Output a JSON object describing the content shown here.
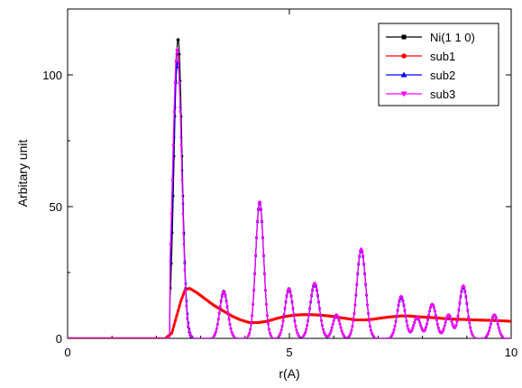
{
  "chart_data": {
    "type": "line",
    "title": "",
    "xlabel": "r(A)",
    "ylabel": "Arbitary unit",
    "xlim": [
      0,
      10
    ],
    "ylim": [
      0,
      125
    ],
    "xticks": [
      0,
      5,
      10
    ],
    "yticks": [
      0,
      50,
      100
    ],
    "grid": false,
    "legend_position": "top-right",
    "series": [
      {
        "name": "Ni(1 1 0)",
        "color": "#000000",
        "marker": "square",
        "kind": "peaks",
        "onset": 2.3,
        "peaks": [
          {
            "x": 2.49,
            "y": 114,
            "w": 0.09
          },
          {
            "x": 3.52,
            "y": 18,
            "w": 0.09
          },
          {
            "x": 4.33,
            "y": 52,
            "w": 0.09
          },
          {
            "x": 4.99,
            "y": 19,
            "w": 0.09
          },
          {
            "x": 5.57,
            "y": 21,
            "w": 0.1
          },
          {
            "x": 6.06,
            "y": 9,
            "w": 0.08
          },
          {
            "x": 6.62,
            "y": 34,
            "w": 0.1
          },
          {
            "x": 7.52,
            "y": 16,
            "w": 0.09
          },
          {
            "x": 7.88,
            "y": 8,
            "w": 0.08
          },
          {
            "x": 8.22,
            "y": 13,
            "w": 0.09
          },
          {
            "x": 8.59,
            "y": 9,
            "w": 0.08
          },
          {
            "x": 8.92,
            "y": 20,
            "w": 0.09
          },
          {
            "x": 9.62,
            "y": 9,
            "w": 0.08
          }
        ]
      },
      {
        "name": "sub1",
        "color": "#ff0000",
        "marker": "circle",
        "kind": "curve",
        "points": [
          [
            0.0,
            0
          ],
          [
            2.2,
            0
          ],
          [
            2.35,
            2
          ],
          [
            2.45,
            8
          ],
          [
            2.55,
            14
          ],
          [
            2.65,
            18.5
          ],
          [
            2.75,
            19
          ],
          [
            2.9,
            17.5
          ],
          [
            3.1,
            15
          ],
          [
            3.3,
            12.5
          ],
          [
            3.5,
            10.5
          ],
          [
            3.7,
            8.5
          ],
          [
            3.9,
            7
          ],
          [
            4.1,
            6
          ],
          [
            4.3,
            6
          ],
          [
            4.5,
            6.5
          ],
          [
            4.7,
            7.5
          ],
          [
            4.9,
            8.3
          ],
          [
            5.1,
            8.8
          ],
          [
            5.3,
            9
          ],
          [
            5.5,
            9
          ],
          [
            5.7,
            8.8
          ],
          [
            5.9,
            8.5
          ],
          [
            6.1,
            8
          ],
          [
            6.3,
            7.5
          ],
          [
            6.5,
            7
          ],
          [
            6.7,
            7
          ],
          [
            6.9,
            7.3
          ],
          [
            7.1,
            7.8
          ],
          [
            7.3,
            8.2
          ],
          [
            7.5,
            8.5
          ],
          [
            7.7,
            8.5
          ],
          [
            7.9,
            8.2
          ],
          [
            8.1,
            8
          ],
          [
            8.3,
            7.8
          ],
          [
            8.5,
            7.5
          ],
          [
            8.7,
            7.3
          ],
          [
            8.9,
            7.2
          ],
          [
            9.2,
            7
          ],
          [
            9.6,
            6.8
          ],
          [
            10.0,
            6.5
          ]
        ]
      },
      {
        "name": "sub2",
        "color": "#0000ff",
        "marker": "triangle",
        "kind": "peaks",
        "onset": 2.3,
        "peaks": [
          {
            "x": 2.48,
            "y": 105,
            "w": 0.1
          },
          {
            "x": 3.52,
            "y": 17.5,
            "w": 0.09
          },
          {
            "x": 4.33,
            "y": 51.5,
            "w": 0.09
          },
          {
            "x": 4.99,
            "y": 18.5,
            "w": 0.09
          },
          {
            "x": 5.57,
            "y": 20.5,
            "w": 0.1
          },
          {
            "x": 6.06,
            "y": 8.8,
            "w": 0.08
          },
          {
            "x": 6.62,
            "y": 33.5,
            "w": 0.1
          },
          {
            "x": 7.52,
            "y": 15.5,
            "w": 0.09
          },
          {
            "x": 7.88,
            "y": 7.8,
            "w": 0.08
          },
          {
            "x": 8.22,
            "y": 12.8,
            "w": 0.09
          },
          {
            "x": 8.59,
            "y": 8.8,
            "w": 0.08
          },
          {
            "x": 8.92,
            "y": 19.5,
            "w": 0.09
          },
          {
            "x": 9.62,
            "y": 8.8,
            "w": 0.08
          }
        ]
      },
      {
        "name": "sub3",
        "color": "#ff00ff",
        "marker": "triangle-down",
        "kind": "peaks",
        "onset": 2.3,
        "peaks": [
          {
            "x": 2.47,
            "y": 110,
            "w": 0.1
          },
          {
            "x": 3.52,
            "y": 17.8,
            "w": 0.09
          },
          {
            "x": 4.33,
            "y": 52,
            "w": 0.09
          },
          {
            "x": 4.99,
            "y": 18.8,
            "w": 0.09
          },
          {
            "x": 5.57,
            "y": 21,
            "w": 0.1
          },
          {
            "x": 6.06,
            "y": 9,
            "w": 0.08
          },
          {
            "x": 6.62,
            "y": 34,
            "w": 0.1
          },
          {
            "x": 7.52,
            "y": 16,
            "w": 0.09
          },
          {
            "x": 7.88,
            "y": 8,
            "w": 0.08
          },
          {
            "x": 8.22,
            "y": 13,
            "w": 0.09
          },
          {
            "x": 8.59,
            "y": 9,
            "w": 0.08
          },
          {
            "x": 8.92,
            "y": 20,
            "w": 0.09
          },
          {
            "x": 9.62,
            "y": 9,
            "w": 0.08
          }
        ]
      }
    ]
  }
}
